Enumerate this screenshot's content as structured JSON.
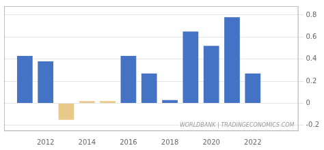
{
  "chart_data": {
    "type": "bar",
    "x": [
      2011,
      2012,
      2013,
      2014,
      2015,
      2016,
      2017,
      2018,
      2019,
      2020,
      2021,
      2022,
      2023
    ],
    "values": [
      0.43,
      0.38,
      -0.15,
      0.02,
      0.02,
      0.43,
      0.27,
      0.03,
      0.65,
      0.52,
      0.78,
      0.27,
      0.0
    ],
    "colors": [
      "#4472c4",
      "#4472c4",
      "#e8c98a",
      "#e8c98a",
      "#e8c98a",
      "#4472c4",
      "#4472c4",
      "#4472c4",
      "#4472c4",
      "#4472c4",
      "#4472c4",
      "#4472c4",
      "#4472c4"
    ],
    "xlim": [
      2010.0,
      2024.2
    ],
    "xticks": [
      2012,
      2014,
      2016,
      2018,
      2020,
      2022
    ],
    "ylim": [
      -0.25,
      0.88
    ],
    "yticks": [
      -0.2,
      0.0,
      0.2,
      0.4,
      0.6,
      0.8
    ],
    "grid": true,
    "annotation": "WORLDBANK | TRADINGECONOMICS.COM"
  }
}
